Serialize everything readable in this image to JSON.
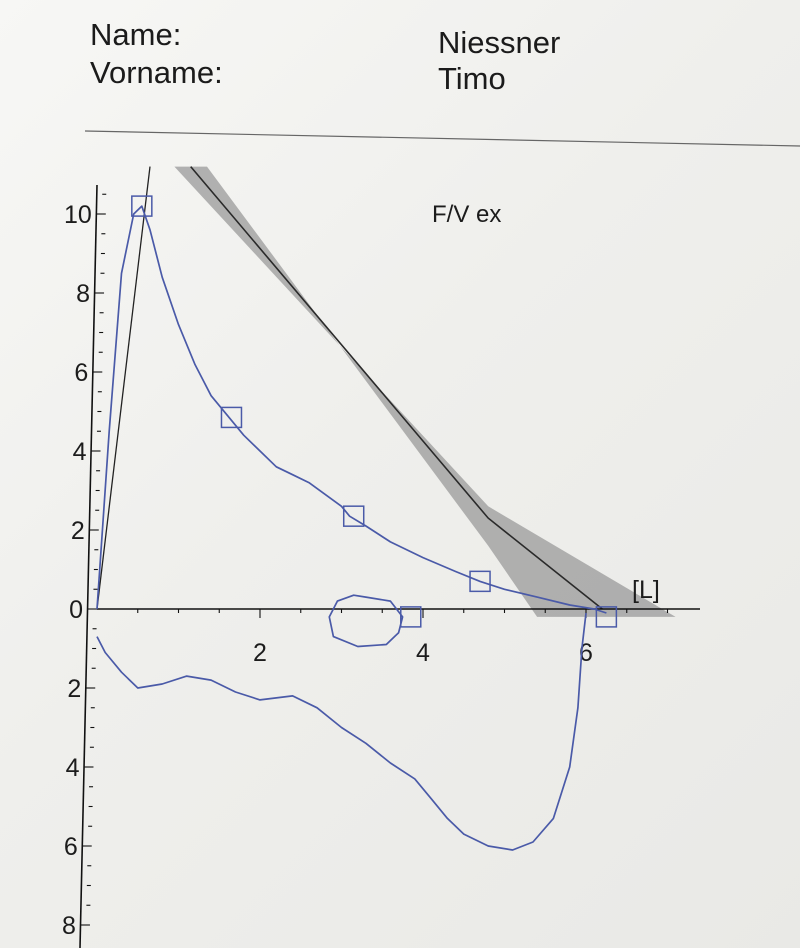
{
  "header": {
    "name_label": "Name:",
    "vorname_label": "Vorname:",
    "name_value": "Niessner",
    "vorname_value": "Timo"
  },
  "chart_data": {
    "type": "line",
    "title": "F/V ex",
    "unit_label": "[L]",
    "xlim": [
      0,
      7.2
    ],
    "ylim": [
      -8,
      11
    ],
    "x_ticks": [
      2,
      4,
      6
    ],
    "y_ticks": [
      {
        "value": 10,
        "label": "10"
      },
      {
        "value": 8,
        "label": "8"
      },
      {
        "value": 6,
        "label": "6"
      },
      {
        "value": 4,
        "label": "4"
      },
      {
        "value": 2,
        "label": "2"
      },
      {
        "value": 0,
        "label": "0"
      },
      {
        "value": -2,
        "label": "2"
      },
      {
        "value": -4,
        "label": "4"
      },
      {
        "value": -6,
        "label": "6"
      },
      {
        "value": -8,
        "label": "8"
      }
    ],
    "colors": {
      "curve": "#4a5aa8",
      "band": "#9a9a9a",
      "reference": "#2a2a2a"
    },
    "series": [
      {
        "role": "expiratory",
        "points": [
          [
            0,
            0
          ],
          [
            0.15,
            4.5
          ],
          [
            0.3,
            8.5
          ],
          [
            0.45,
            10.0
          ],
          [
            0.55,
            10.2
          ],
          [
            0.65,
            9.6
          ],
          [
            0.8,
            8.4
          ],
          [
            1.0,
            7.2
          ],
          [
            1.2,
            6.2
          ],
          [
            1.4,
            5.4
          ],
          [
            1.6,
            4.9
          ],
          [
            1.8,
            4.4
          ],
          [
            2.0,
            4.0
          ],
          [
            2.2,
            3.6
          ],
          [
            2.4,
            3.4
          ],
          [
            2.6,
            3.2
          ],
          [
            2.8,
            2.9
          ],
          [
            3.0,
            2.6
          ],
          [
            3.1,
            2.35
          ],
          [
            3.3,
            2.1
          ],
          [
            3.6,
            1.7
          ],
          [
            4.0,
            1.3
          ],
          [
            4.4,
            0.95
          ],
          [
            4.7,
            0.7
          ],
          [
            5.0,
            0.5
          ],
          [
            5.4,
            0.3
          ],
          [
            5.8,
            0.1
          ],
          [
            6.1,
            0.0
          ],
          [
            6.25,
            -0.1
          ]
        ]
      },
      {
        "role": "inspiratory",
        "points": [
          [
            0,
            -0.7
          ],
          [
            0.1,
            -1.1
          ],
          [
            0.3,
            -1.6
          ],
          [
            0.5,
            -2.0
          ],
          [
            0.8,
            -1.9
          ],
          [
            1.1,
            -1.7
          ],
          [
            1.4,
            -1.8
          ],
          [
            1.7,
            -2.1
          ],
          [
            2.0,
            -2.3
          ],
          [
            2.4,
            -2.2
          ],
          [
            2.7,
            -2.5
          ],
          [
            3.0,
            -3.0
          ],
          [
            3.3,
            -3.4
          ],
          [
            3.6,
            -3.9
          ],
          [
            3.9,
            -4.3
          ],
          [
            4.1,
            -4.8
          ],
          [
            4.3,
            -5.3
          ],
          [
            4.5,
            -5.7
          ],
          [
            4.8,
            -6.0
          ],
          [
            5.1,
            -6.1
          ],
          [
            5.35,
            -5.9
          ],
          [
            5.6,
            -5.3
          ],
          [
            5.8,
            -4.0
          ],
          [
            5.9,
            -2.5
          ],
          [
            5.95,
            -1.0
          ],
          [
            6.0,
            -0.1
          ]
        ]
      },
      {
        "role": "loop",
        "points": [
          [
            3.3,
            0.3
          ],
          [
            3.6,
            0.2
          ],
          [
            3.75,
            -0.2
          ],
          [
            3.7,
            -0.6
          ],
          [
            3.55,
            -0.9
          ],
          [
            3.2,
            -0.95
          ],
          [
            2.9,
            -0.7
          ],
          [
            2.85,
            -0.2
          ],
          [
            2.95,
            0.2
          ],
          [
            3.15,
            0.35
          ],
          [
            3.3,
            0.3
          ]
        ]
      }
    ],
    "markers": [
      [
        0.55,
        10.2
      ],
      [
        1.65,
        4.85
      ],
      [
        3.15,
        2.35
      ],
      [
        4.7,
        0.7
      ],
      [
        3.85,
        -0.2
      ],
      [
        6.25,
        -0.2
      ]
    ],
    "predicted_line": [
      [
        1.15,
        11.2
      ],
      [
        4.8,
        2.3
      ],
      [
        6.2,
        0.0
      ]
    ],
    "predicted_band": {
      "upper": [
        [
          0.95,
          11.2
        ],
        [
          4.8,
          2.6
        ],
        [
          7.1,
          -0.2
        ]
      ],
      "lower": [
        [
          1.35,
          11.2
        ],
        [
          4.8,
          1.6
        ],
        [
          5.4,
          -0.2
        ]
      ]
    },
    "baseline_slope_line": [
      [
        0,
        0
      ],
      [
        0.65,
        11.2
      ]
    ]
  }
}
